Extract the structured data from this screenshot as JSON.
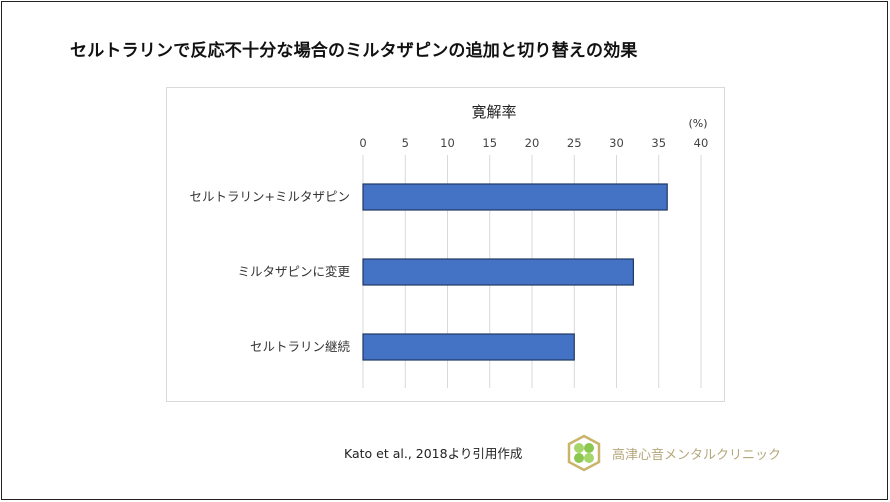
{
  "title": "セルトラリンで反応不十分な場合のミルタザピンの追加と切り替えの効果",
  "chart_data": {
    "type": "bar",
    "orientation": "horizontal",
    "title": "寛解率",
    "unit_label": "(%)",
    "categories": [
      "セルトラリン+ミルタザピン",
      "ミルタザピンに変更",
      "セルトラリン継続"
    ],
    "values": [
      36,
      32,
      25
    ],
    "xlim": [
      0,
      40
    ],
    "ticks": [
      "0",
      "5",
      "10",
      "15",
      "20",
      "25",
      "30",
      "35",
      "40"
    ],
    "grid": true,
    "bar_color": "#4472C4",
    "bar_edge": "#1F3864"
  },
  "source": "Kato et al., 2018より引用作成",
  "clinic": {
    "name": "高津心音メンタルクリニック",
    "logo_color": "#c9b46a"
  }
}
